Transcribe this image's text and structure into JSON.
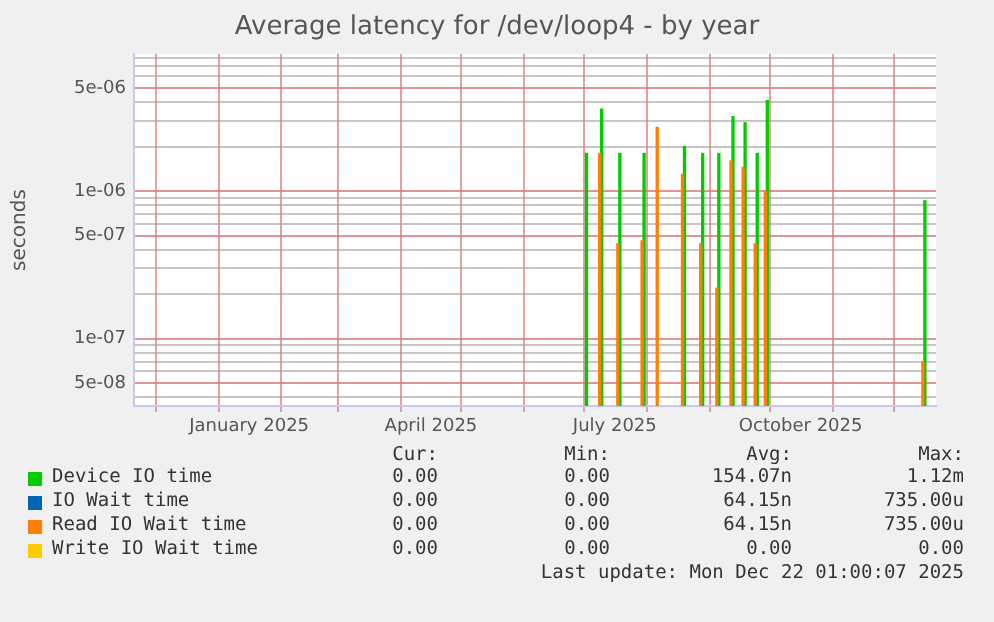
{
  "chart_data": {
    "type": "bar",
    "title": "Average latency for /dev/loop4 - by year",
    "ylabel": "seconds",
    "x": [
      "2025-07-02",
      "2025-07-09",
      "2025-07-18",
      "2025-07-30",
      "2025-08-06",
      "2025-08-19",
      "2025-08-28",
      "2025-09-05",
      "2025-09-12",
      "2025-09-18",
      "2025-09-24",
      "2025-09-29",
      "2025-12-16"
    ],
    "series": [
      {
        "name": "Device IO time",
        "color": "#00cc00",
        "values": [
          1.8e-06,
          3.6e-06,
          1.8e-06,
          1.8e-06,
          null,
          2e-06,
          1.8e-06,
          1.8e-06,
          3.2e-06,
          2.9e-06,
          1.8e-06,
          4.1e-06,
          8.6e-07
        ]
      },
      {
        "name": "IO Wait time",
        "color": "#0066b3",
        "values": [
          null,
          null,
          null,
          null,
          null,
          null,
          null,
          null,
          null,
          null,
          null,
          null,
          null
        ]
      },
      {
        "name": "Read IO Wait time",
        "color": "#ff8000",
        "values": [
          null,
          1.8e-06,
          4.4e-07,
          4.6e-07,
          2.7e-06,
          1.3e-06,
          4.4e-07,
          2.2e-07,
          1.6e-06,
          1.45e-06,
          4.4e-07,
          1e-06,
          7e-08
        ]
      },
      {
        "name": "Write IO Wait time",
        "color": "#ffcc00",
        "values": [
          null,
          null,
          null,
          null,
          null,
          null,
          null,
          null,
          null,
          null,
          null,
          null,
          null
        ]
      }
    ],
    "log": "y",
    "ylim": [
      3.5e-08,
      8.5e-06
    ],
    "yticks": [
      {
        "value": 4e-08,
        "label": null
      },
      {
        "value": 5e-08,
        "label": "5e-08"
      },
      {
        "value": 6e-08,
        "label": null
      },
      {
        "value": 7e-08,
        "label": null
      },
      {
        "value": 8e-08,
        "label": null
      },
      {
        "value": 9e-08,
        "label": null
      },
      {
        "value": 1e-07,
        "label": "1e-07"
      },
      {
        "value": 2e-07,
        "label": null
      },
      {
        "value": 3e-07,
        "label": null
      },
      {
        "value": 4e-07,
        "label": null
      },
      {
        "value": 5e-07,
        "label": "5e-07"
      },
      {
        "value": 6e-07,
        "label": null
      },
      {
        "value": 7e-07,
        "label": null
      },
      {
        "value": 8e-07,
        "label": null
      },
      {
        "value": 9e-07,
        "label": null
      },
      {
        "value": 1e-06,
        "label": "1e-06"
      },
      {
        "value": 2e-06,
        "label": null
      },
      {
        "value": 3e-06,
        "label": null
      },
      {
        "value": 4e-06,
        "label": null
      },
      {
        "value": 5e-06,
        "label": "5e-06"
      },
      {
        "value": 6e-06,
        "label": null
      },
      {
        "value": 7e-06,
        "label": null
      },
      {
        "value": 8e-06,
        "label": null
      }
    ],
    "xlim": [
      "2024-11-20",
      "2025-12-22"
    ],
    "xticks": [
      {
        "value": "2024-12-01",
        "label": null
      },
      {
        "value": "2025-01-01",
        "label": null
      },
      {
        "value": "2025-01-16",
        "label": "January 2025"
      },
      {
        "value": "2025-02-01",
        "label": null
      },
      {
        "value": "2025-03-01",
        "label": null
      },
      {
        "value": "2025-04-01",
        "label": null
      },
      {
        "value": "2025-04-16",
        "label": "April 2025"
      },
      {
        "value": "2025-05-01",
        "label": null
      },
      {
        "value": "2025-06-01",
        "label": null
      },
      {
        "value": "2025-07-01",
        "label": null
      },
      {
        "value": "2025-07-16",
        "label": "July 2025"
      },
      {
        "value": "2025-08-01",
        "label": null
      },
      {
        "value": "2025-09-01",
        "label": null
      },
      {
        "value": "2025-10-01",
        "label": null
      },
      {
        "value": "2025-10-16",
        "label": "October 2025"
      },
      {
        "value": "2025-11-01",
        "label": null
      },
      {
        "value": "2025-12-01",
        "label": null
      }
    ],
    "grid": true,
    "legend": "bottom",
    "annotations": [
      "Cur:",
      "Min:",
      "Avg:",
      "Max:",
      "0.00",
      "0.00",
      "154.07n",
      "1.12m",
      "0.00",
      "0.00",
      "64.15n",
      "735.00u",
      "0.00",
      "0.00",
      "64.15n",
      "735.00u",
      "0.00",
      "0.00",
      "0.00",
      "0.00",
      "Last update: Mon Dec 22 01:00:07 2025"
    ]
  }
}
